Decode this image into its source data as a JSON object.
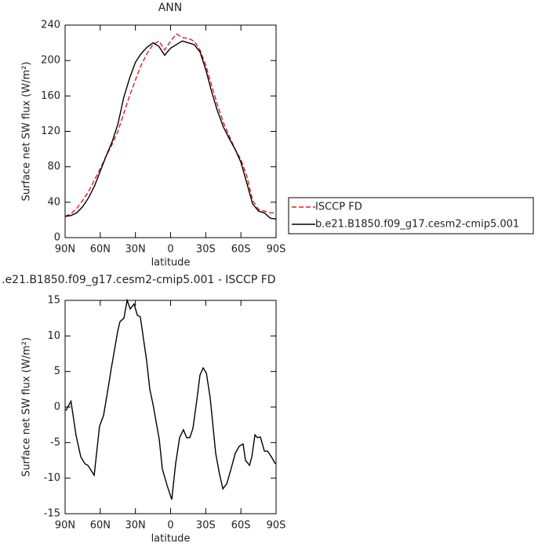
{
  "chart_data": [
    {
      "type": "line",
      "title": "ANN",
      "x_label": "latitude",
      "y_label": "Surface net SW flux (W/m²)",
      "xlim": [
        90,
        -90
      ],
      "xticks": [
        {
          "value": 90,
          "label": "90N"
        },
        {
          "value": 60,
          "label": "60N"
        },
        {
          "value": 30,
          "label": "30N"
        },
        0,
        {
          "value": -30,
          "label": "30S"
        },
        {
          "value": -60,
          "label": "60S"
        },
        {
          "value": -90,
          "label": "90S"
        }
      ],
      "ylim": [
        0,
        240
      ],
      "yticks": [
        0,
        40,
        80,
        120,
        160,
        200,
        240
      ],
      "legend": "right",
      "x": [
        90,
        85,
        80,
        75,
        70,
        65,
        60,
        55,
        50,
        45,
        40,
        35,
        30,
        25,
        20,
        15,
        10,
        5,
        0,
        -5,
        -10,
        -15,
        -20,
        -25,
        -30,
        -35,
        -40,
        -45,
        -50,
        -55,
        -60,
        -65,
        -70,
        -75,
        -80,
        -85,
        -90
      ],
      "series": [
        {
          "name": "ISCCP FD",
          "color": "#e41a1c",
          "line_style": "dashed",
          "values": [
            24,
            27,
            33,
            42,
            52,
            65,
            78,
            92,
            105,
            120,
            140,
            160,
            178,
            195,
            208,
            218,
            222,
            212,
            222,
            230,
            226,
            225,
            222,
            212,
            195,
            172,
            150,
            130,
            115,
            100,
            88,
            70,
            42,
            32,
            30,
            28,
            28
          ]
        },
        {
          "name": "b.e21.B1850.f09_g17.cesm2-cmip5.001",
          "color": "#000000",
          "line_style": "solid",
          "values": [
            24,
            25,
            28,
            35,
            45,
            58,
            75,
            92,
            108,
            128,
            158,
            180,
            198,
            208,
            215,
            220,
            216,
            206,
            214,
            218,
            222,
            220,
            218,
            210,
            190,
            165,
            143,
            125,
            112,
            100,
            85,
            62,
            38,
            30,
            28,
            22,
            21
          ]
        }
      ]
    },
    {
      "type": "line",
      "title": ".e21.B1850.f09_g17.cesm2-cmip5.001 - ISCCP FD",
      "x_label": "latitude",
      "y_label": "Surface net SW flux (W/m²)",
      "xlim": [
        90,
        -90
      ],
      "xticks": [
        {
          "value": 90,
          "label": "90N"
        },
        {
          "value": 60,
          "label": "60N"
        },
        {
          "value": 30,
          "label": "30N"
        },
        0,
        {
          "value": -30,
          "label": "30S"
        },
        {
          "value": -60,
          "label": "60S"
        },
        {
          "value": -90,
          "label": "90S"
        }
      ],
      "ylim": [
        -15,
        15
      ],
      "yticks": [
        -15,
        -10,
        -5,
        0,
        5,
        10,
        15
      ],
      "x": [
        89.3,
        85,
        80.6,
        76.6,
        73,
        70.6,
        65.2,
        60.6,
        57.2,
        53.9,
        50.5,
        45.2,
        43.2,
        39.8,
        37.1,
        34.4,
        31.1,
        28.4,
        25.8,
        20.4,
        17.7,
        15.1,
        9.7,
        7,
        3,
        -1,
        -4.3,
        -7.7,
        -11,
        -13.7,
        -16.4,
        -19.1,
        -22.4,
        -25.1,
        -27.8,
        -30.5,
        -33.8,
        -38.5,
        -41.8,
        -44.6,
        -47.9,
        -51.9,
        -55.2,
        -58.6,
        -61.9,
        -63.9,
        -67.3,
        -69.3,
        -72,
        -74,
        -76.6,
        -80,
        -82.7,
        -86,
        -89.4
      ],
      "series": [
        {
          "color": "#000000",
          "line_style": "solid",
          "values": [
            -0.5,
            0.8,
            -4,
            -7,
            -8,
            -8.2,
            -9.6,
            -2.7,
            -1.2,
            2,
            5.5,
            10.6,
            12,
            12.5,
            15,
            13.8,
            14.5,
            12.9,
            12.7,
            6.5,
            2.5,
            0.5,
            -4.5,
            -8.7,
            -11,
            -13,
            -8,
            -4.3,
            -3.2,
            -4.3,
            -4.3,
            -3,
            1,
            4.5,
            5.5,
            4.8,
            1.3,
            -6.5,
            -9.5,
            -11.5,
            -10.8,
            -8.5,
            -6.5,
            -5.5,
            -5.2,
            -7.5,
            -8.2,
            -7,
            -3.9,
            -4.3,
            -4.2,
            -6.2,
            -6.2,
            -7,
            -8
          ]
        }
      ]
    }
  ]
}
